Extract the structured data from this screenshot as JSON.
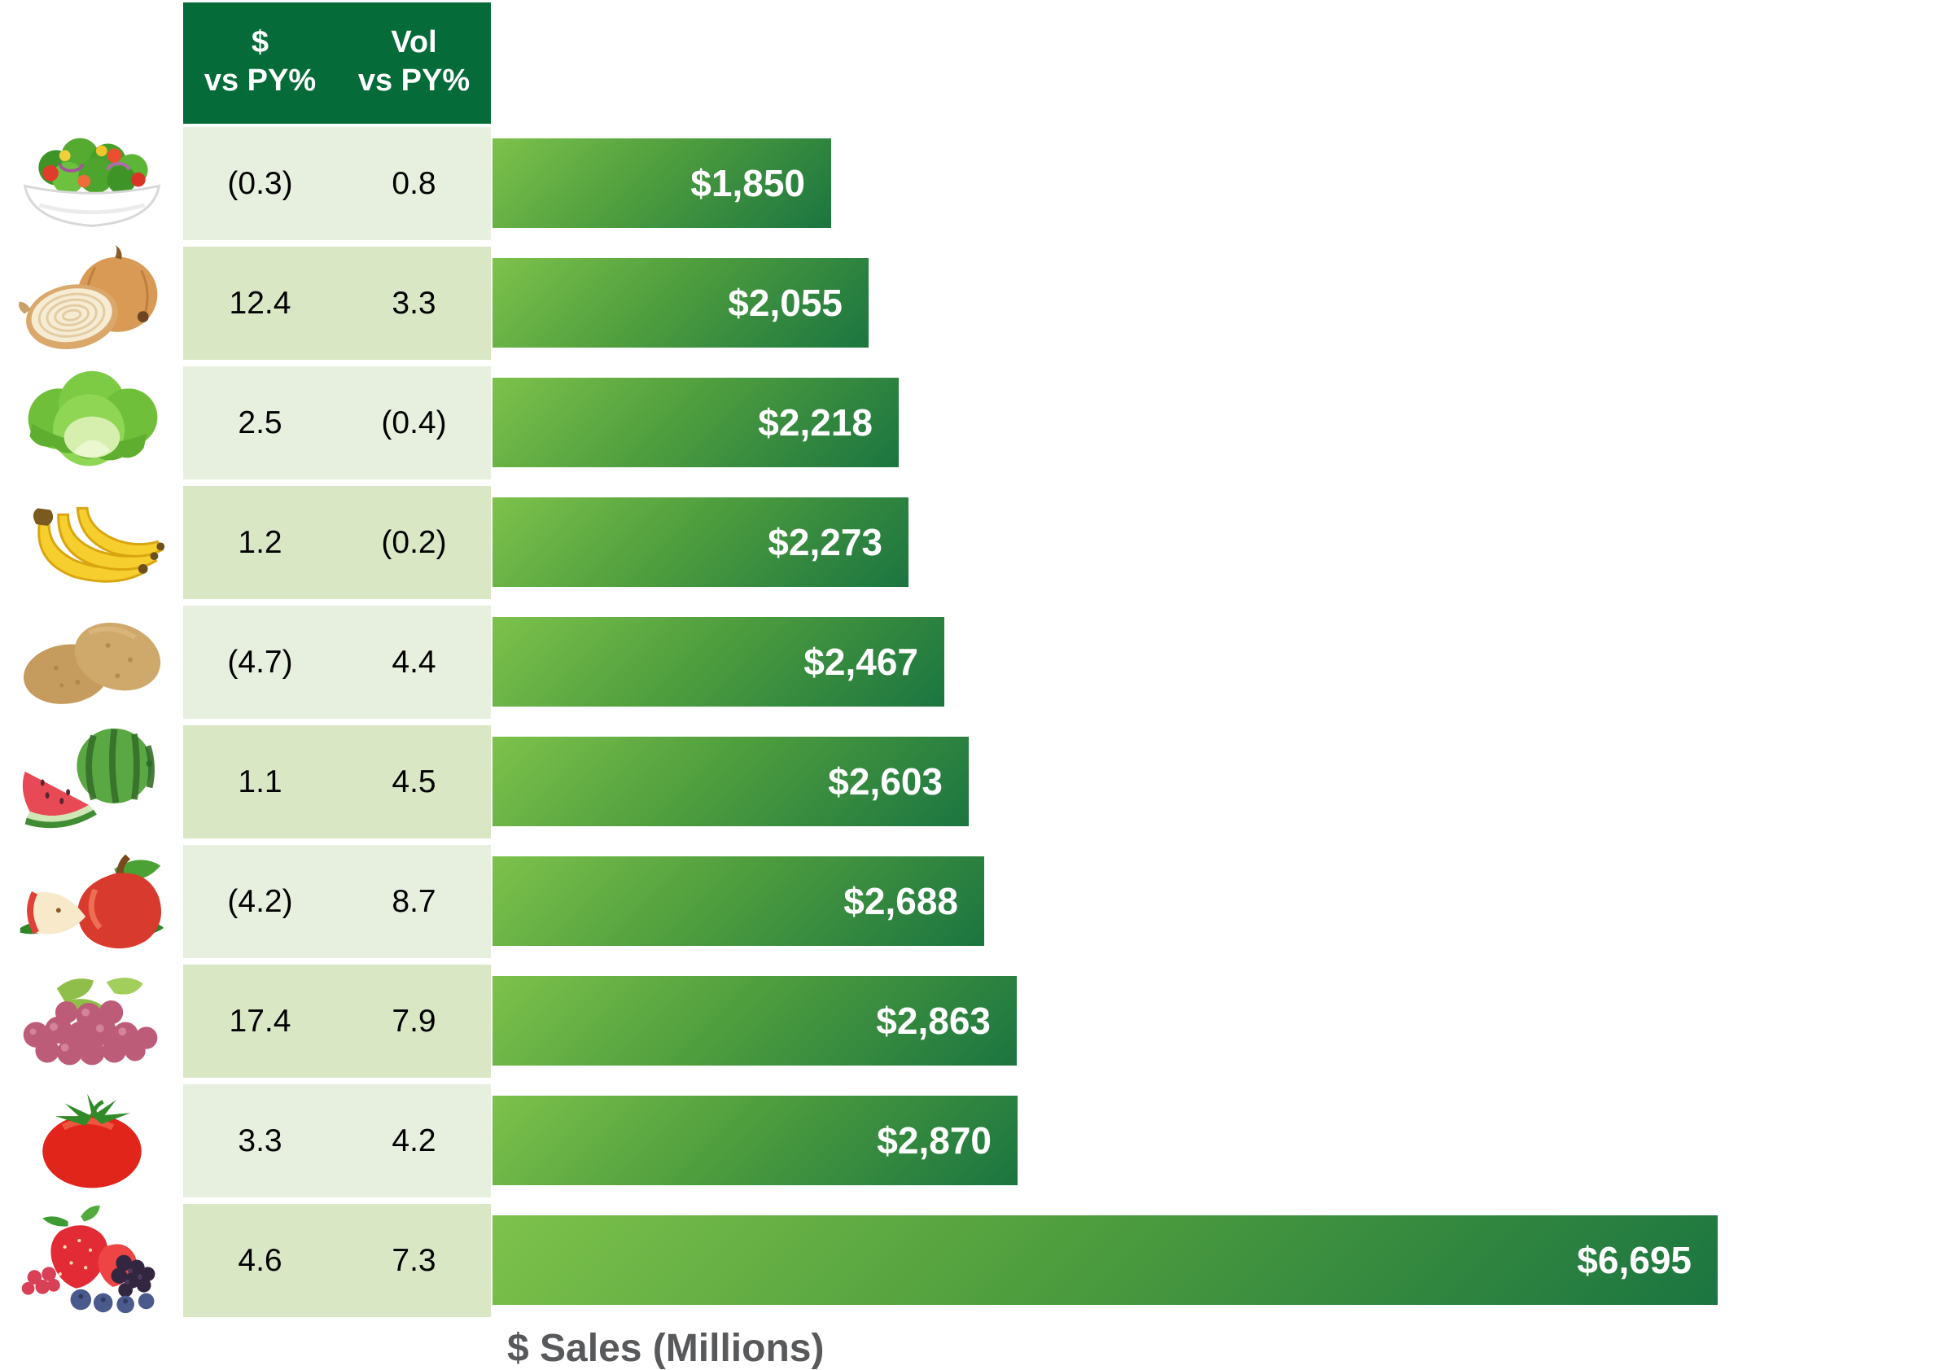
{
  "table": {
    "header": {
      "dollar_col_line1": "$",
      "dollar_col_line2": "vs PY%",
      "vol_col_line1": "Vol",
      "vol_col_line2": "vs PY%"
    }
  },
  "axis": {
    "xlabel": "$ Sales (Millions)"
  },
  "rows": [
    {
      "item": "salad",
      "icon": "salad-icon",
      "dollar_vs_py": "(0.3)",
      "vol_vs_py": "0.8",
      "sales": 1850,
      "sales_label": "$1,850"
    },
    {
      "item": "onion",
      "icon": "onion-icon",
      "dollar_vs_py": "12.4",
      "vol_vs_py": "3.3",
      "sales": 2055,
      "sales_label": "$2,055"
    },
    {
      "item": "lettuce",
      "icon": "lettuce-icon",
      "dollar_vs_py": "2.5",
      "vol_vs_py": "(0.4)",
      "sales": 2218,
      "sales_label": "$2,218"
    },
    {
      "item": "bananas",
      "icon": "bananas-icon",
      "dollar_vs_py": "1.2",
      "vol_vs_py": "(0.2)",
      "sales": 2273,
      "sales_label": "$2,273"
    },
    {
      "item": "potatoes",
      "icon": "potatoes-icon",
      "dollar_vs_py": "(4.7)",
      "vol_vs_py": "4.4",
      "sales": 2467,
      "sales_label": "$2,467"
    },
    {
      "item": "watermelon",
      "icon": "watermelon-icon",
      "dollar_vs_py": "1.1",
      "vol_vs_py": "4.5",
      "sales": 2603,
      "sales_label": "$2,603"
    },
    {
      "item": "apple",
      "icon": "apple-icon",
      "dollar_vs_py": "(4.2)",
      "vol_vs_py": "8.7",
      "sales": 2688,
      "sales_label": "$2,688"
    },
    {
      "item": "grapes",
      "icon": "grapes-icon",
      "dollar_vs_py": "17.4",
      "vol_vs_py": "7.9",
      "sales": 2863,
      "sales_label": "$2,863"
    },
    {
      "item": "tomato",
      "icon": "tomato-icon",
      "dollar_vs_py": "3.3",
      "vol_vs_py": "4.2",
      "sales": 2870,
      "sales_label": "$2,870"
    },
    {
      "item": "berries",
      "icon": "berries-icon",
      "dollar_vs_py": "4.6",
      "vol_vs_py": "7.3",
      "sales": 6695,
      "sales_label": "$6,695"
    }
  ],
  "chart_data": {
    "type": "bar",
    "orientation": "horizontal",
    "title": "",
    "xlabel": "$ Sales (Millions)",
    "grid": false,
    "legend": false,
    "categories": [
      "salad",
      "onions",
      "lettuce",
      "bananas",
      "potatoes",
      "watermelon",
      "apples",
      "grapes",
      "tomatoes",
      "berries"
    ],
    "series": [
      {
        "name": "$ Sales (Millions)",
        "values": [
          1850,
          2055,
          2218,
          2273,
          2467,
          2603,
          2688,
          2863,
          2870,
          6695
        ]
      },
      {
        "name": "$ vs PY%",
        "values": [
          -0.3,
          12.4,
          2.5,
          1.2,
          -4.7,
          1.1,
          -4.2,
          17.4,
          3.3,
          4.6
        ]
      },
      {
        "name": "Vol vs PY%",
        "values": [
          0.8,
          3.3,
          -0.4,
          -0.2,
          4.4,
          4.5,
          8.7,
          7.9,
          4.2,
          7.3
        ]
      }
    ],
    "bar_value_labels": [
      "$1,850",
      "$2,055",
      "$2,218",
      "$2,273",
      "$2,467",
      "$2,603",
      "$2,688",
      "$2,863",
      "$2,870",
      "$6,695"
    ],
    "notes": "Negative percentages shown in parentheses; categories depicted as produce photos"
  },
  "colors": {
    "header_bg": "#046b39",
    "row_light": "#e7f0df",
    "row_dark": "#d9e7c5",
    "bar_gradient_start": "#7dc24b",
    "bar_gradient_end": "#1b7540",
    "axis_label": "#58595b"
  }
}
